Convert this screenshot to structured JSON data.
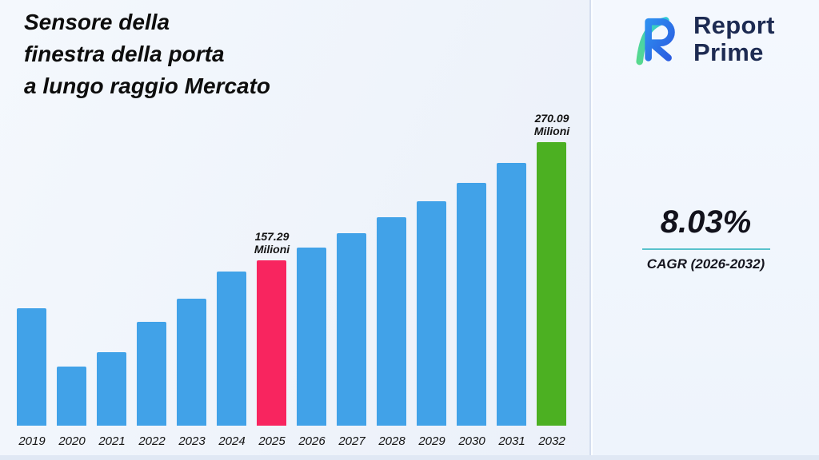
{
  "title": {
    "line1": "Sensore della",
    "line2": "finestra della porta",
    "line3": "a lungo raggio Mercato"
  },
  "logo": {
    "name_line1": "Report",
    "name_line2": "Prime"
  },
  "cagr": {
    "value": "8.03%",
    "label": "CAGR (2026-2032)"
  },
  "colors": {
    "bar_default": "#41A2E8",
    "bar_2025": "#F8255F",
    "bar_2032": "#4CB022",
    "accent_underline": "#59C2CC",
    "logo_navy": "#1D2B52",
    "logo_blue": "#2B6CE6",
    "logo_teal": "#3ECDC4"
  },
  "chart_data": {
    "type": "bar",
    "title": "Sensore della finestra della porta a lungo raggio Mercato",
    "xlabel": "",
    "ylabel": "Milioni",
    "unit": "Milioni",
    "grid": false,
    "legend": false,
    "ylim": [
      0,
      280
    ],
    "categories": [
      "2019",
      "2020",
      "2021",
      "2022",
      "2023",
      "2024",
      "2025",
      "2026",
      "2027",
      "2028",
      "2029",
      "2030",
      "2031",
      "2032"
    ],
    "values": [
      112,
      56,
      70,
      99,
      121,
      147,
      157.29,
      169.87,
      183.51,
      198.24,
      214.16,
      231.35,
      249.93,
      270.09
    ],
    "labeled_values": {
      "2025": 157.29,
      "2032": 270.09
    },
    "annotations": [
      {
        "category": "2025",
        "lines": [
          "157.29",
          "Milioni"
        ]
      },
      {
        "category": "2032",
        "lines": [
          "270.09",
          "Milioni"
        ]
      }
    ],
    "bar_colors_by_category": {
      "2025": "#F8255F",
      "2032": "#4CB022"
    },
    "default_bar_color": "#41A2E8"
  }
}
